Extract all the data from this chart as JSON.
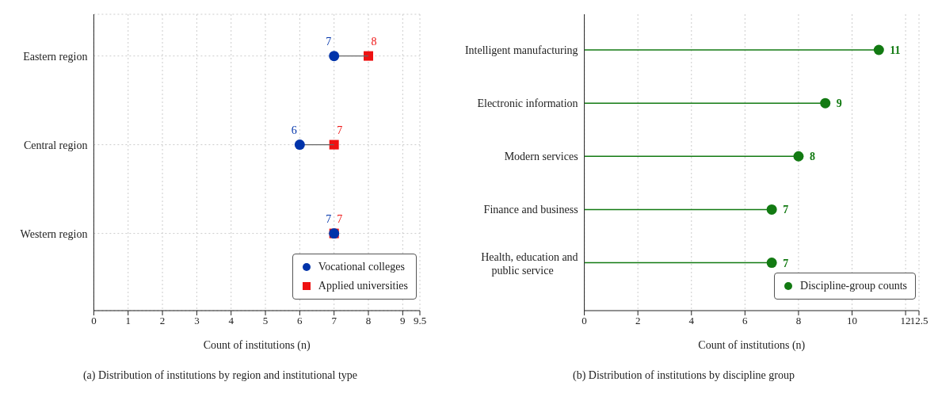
{
  "chart_data": [
    {
      "type": "scatter",
      "orientation": "horizontal",
      "title": "(a) Distribution of institutions by region and institutional type",
      "xlabel": "Count of institutions (n)",
      "categories": [
        "Eastern region",
        "Central region",
        "Western region"
      ],
      "series": [
        {
          "name": "Vocational colleges",
          "color": "#0033aa",
          "marker": "circle",
          "values": [
            7,
            6,
            7
          ]
        },
        {
          "name": "Applied universities",
          "color": "#ee1111",
          "marker": "square",
          "values": [
            8,
            7,
            7
          ]
        }
      ],
      "xlim": [
        0,
        9.5
      ],
      "xticks": [
        0,
        1,
        2,
        3,
        4,
        5,
        6,
        7,
        8,
        9,
        9.5
      ],
      "grid": true,
      "legend": "bottom right",
      "data_labels": true
    },
    {
      "type": "lollipop",
      "orientation": "horizontal",
      "title": "(b) Distribution of institutions by discipline group",
      "xlabel": "Count of institutions (n)",
      "categories": [
        "Intelligent manufacturing",
        "Electronic information",
        "Modern services",
        "Finance and business",
        "Health, education and public service"
      ],
      "series": [
        {
          "name": "Discipline-group counts",
          "color": "#127a12",
          "marker": "circle",
          "values": [
            11,
            9,
            8,
            7,
            7
          ]
        }
      ],
      "xlim": [
        0,
        12.5
      ],
      "xticks": [
        0,
        2,
        4,
        6,
        8,
        10,
        12,
        12.5
      ],
      "grid": "x",
      "legend": "bottom right",
      "data_labels": true
    }
  ]
}
